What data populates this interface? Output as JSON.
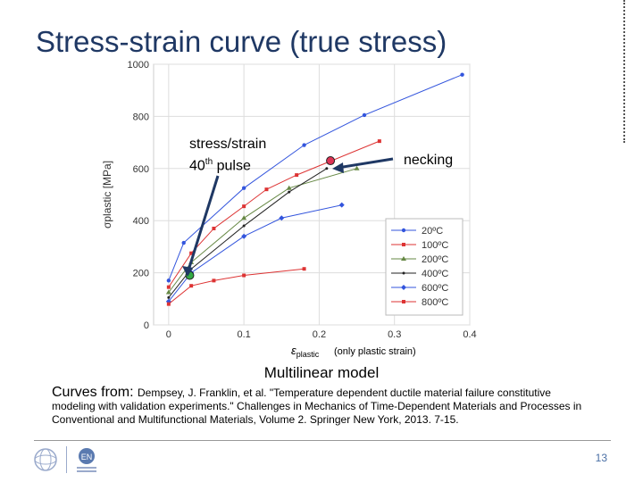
{
  "slide": {
    "title": "Stress-strain curve (true stress)",
    "annotation_pulse_line1": "stress/strain",
    "annotation_pulse_line2_prefix": "40",
    "annotation_pulse_line2_sup": "th",
    "annotation_pulse_line2_suffix": " pulse",
    "annotation_necking": "necking",
    "strain_note": "(only plastic strain)",
    "model_label": "Multilinear model",
    "citation_lead": "Curves from: ",
    "citation_body": "Dempsey, J. Franklin, et al. \"Temperature dependent ductile material failure constitutive modeling with validation experiments.\" Challenges in Mechanics of Time-Dependent Materials and Processes in Conventional and Multifunctional Materials, Volume 2. Springer New York, 2013. 7-15.",
    "page_number": "13",
    "logos": [
      {
        "icon": "cern-logo-icon"
      },
      {
        "icon": "en-department-logo-icon",
        "text": "EN"
      }
    ]
  },
  "chart_data": {
    "type": "line",
    "xlabel": "εplastic",
    "ylabel": "σplastic [MPa]",
    "xlim": [
      -0.02,
      0.4
    ],
    "ylim": [
      0,
      1000
    ],
    "x_ticks": [
      "0",
      "0.1",
      "0.2",
      "0.3",
      "0.4"
    ],
    "x_tick_values": [
      0,
      0.1,
      0.2,
      0.3,
      0.4
    ],
    "y_ticks": [
      "0",
      "200",
      "400",
      "600",
      "800",
      "1000"
    ],
    "y_tick_values": [
      0,
      200,
      400,
      600,
      800,
      1000
    ],
    "grid": true,
    "legend_position": "bottom-right",
    "series": [
      {
        "name": "20ºC",
        "color": "#3355dd",
        "marker": "circle",
        "points": [
          [
            0,
            170
          ],
          [
            0.02,
            315
          ],
          [
            0.1,
            525
          ],
          [
            0.18,
            690
          ],
          [
            0.26,
            805
          ],
          [
            0.39,
            960
          ]
        ]
      },
      {
        "name": "100ºC",
        "color": "#dd3333",
        "marker": "square",
        "points": [
          [
            0,
            145
          ],
          [
            0.03,
            275
          ],
          [
            0.06,
            370
          ],
          [
            0.1,
            455
          ],
          [
            0.13,
            520
          ],
          [
            0.17,
            575
          ],
          [
            0.28,
            705
          ]
        ]
      },
      {
        "name": "200ºC",
        "color": "#668844",
        "marker": "triangle",
        "points": [
          [
            0,
            125
          ],
          [
            0.03,
            240
          ],
          [
            0.1,
            410
          ],
          [
            0.16,
            525
          ],
          [
            0.25,
            600
          ]
        ]
      },
      {
        "name": "400ºC",
        "color": "#222222",
        "marker": "dot",
        "points": [
          [
            0,
            105
          ],
          [
            0.03,
            215
          ],
          [
            0.1,
            380
          ],
          [
            0.16,
            510
          ],
          [
            0.21,
            600
          ]
        ]
      },
      {
        "name": "600ºC",
        "color": "#3355dd",
        "marker": "diamond",
        "points": [
          [
            0,
            90
          ],
          [
            0.03,
            200
          ],
          [
            0.1,
            340
          ],
          [
            0.15,
            410
          ],
          [
            0.23,
            460
          ]
        ]
      },
      {
        "name": "800ºC",
        "color": "#dd3333",
        "marker": "square",
        "points": [
          [
            0,
            80
          ],
          [
            0.03,
            150
          ],
          [
            0.06,
            170
          ],
          [
            0.1,
            190
          ],
          [
            0.18,
            215
          ]
        ]
      }
    ],
    "highlight_points": [
      {
        "label": "40th pulse",
        "x": 0.028,
        "y": 190,
        "color": "#33aa44"
      },
      {
        "label": "necking",
        "x": 0.215,
        "y": 630,
        "color": "#dd3355"
      }
    ]
  }
}
